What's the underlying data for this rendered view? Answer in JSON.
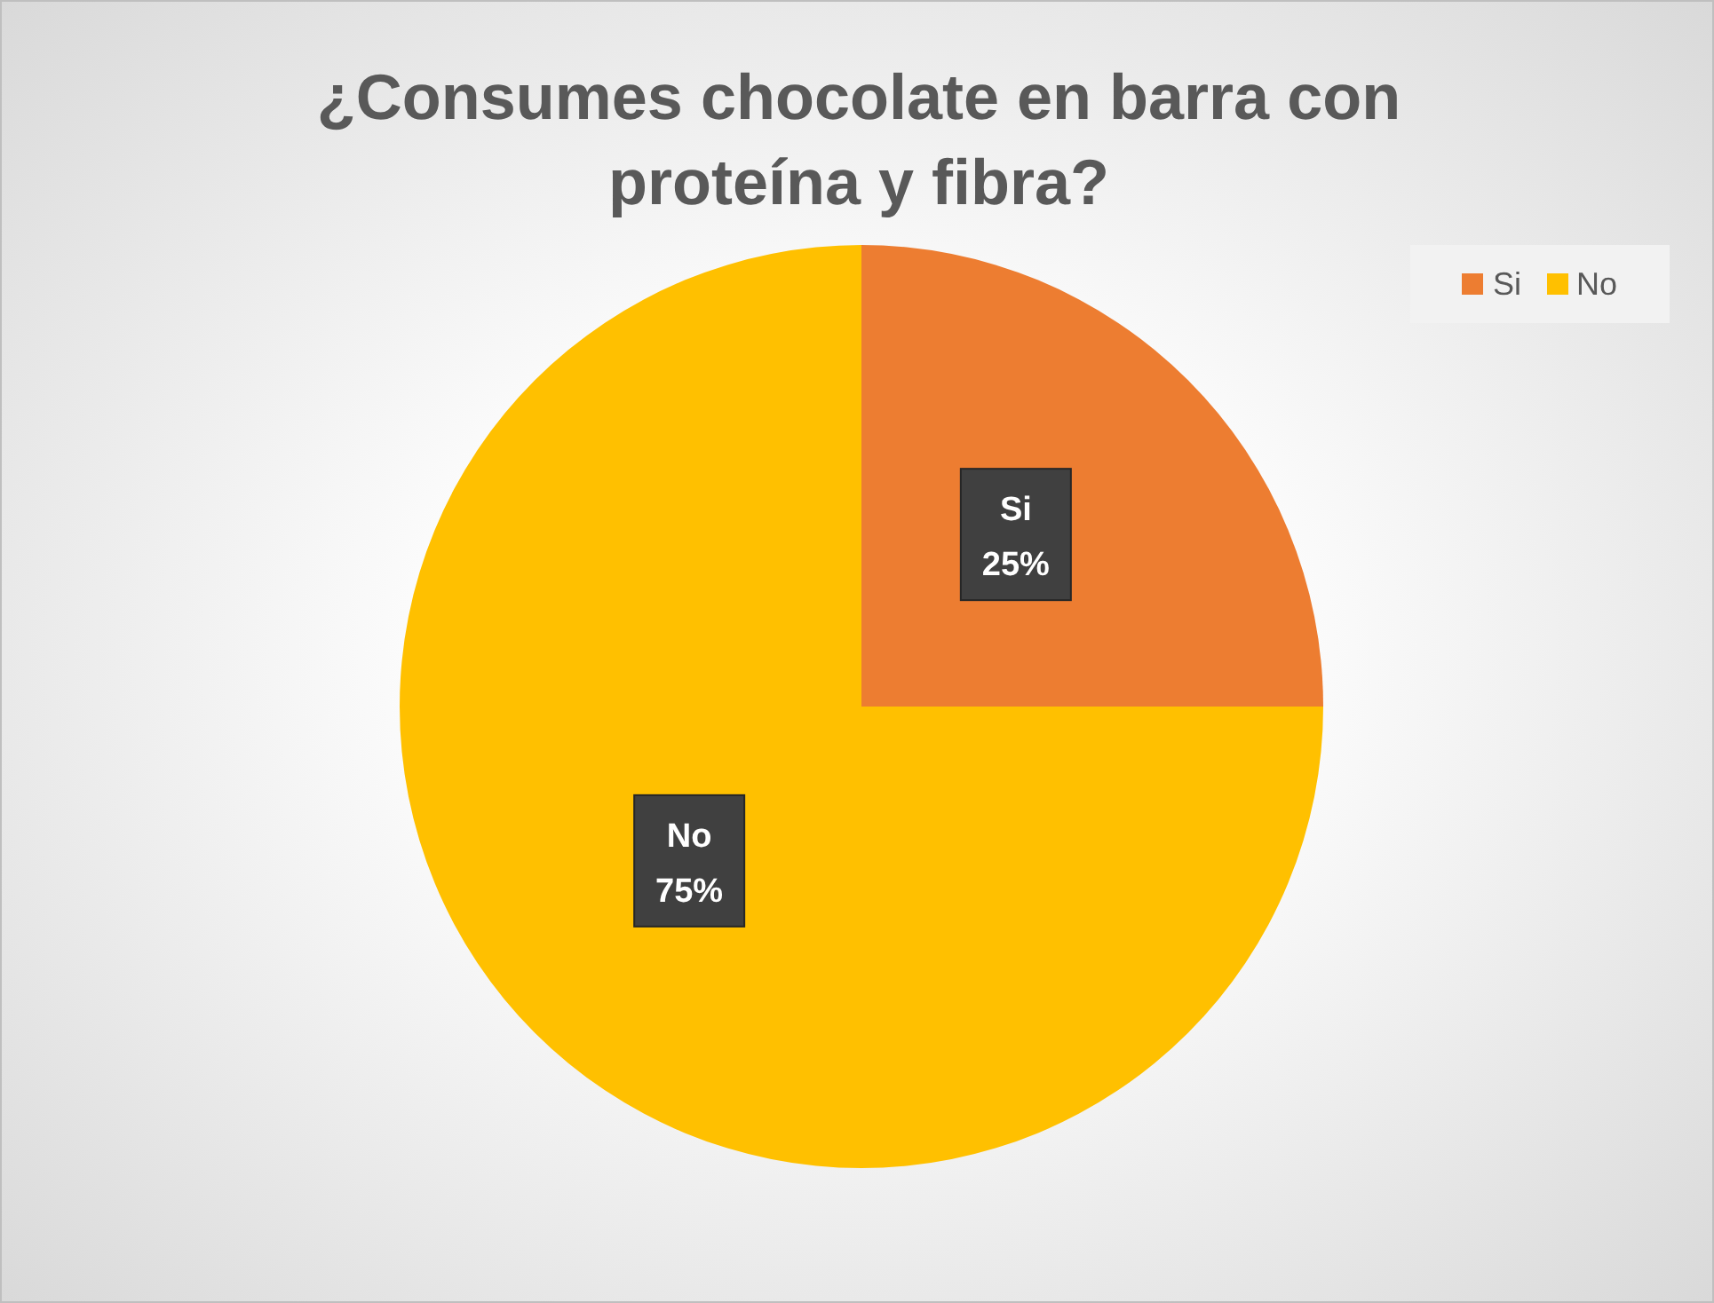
{
  "chart_data": {
    "type": "pie",
    "title": "¿Consumes chocolate en barra con proteína y fibra?",
    "categories": [
      "Si",
      "No"
    ],
    "values": [
      25,
      75
    ],
    "colors": [
      "#ed7d31",
      "#ffc000"
    ],
    "value_labels": [
      "25%",
      "75%"
    ],
    "legend": "top right"
  }
}
